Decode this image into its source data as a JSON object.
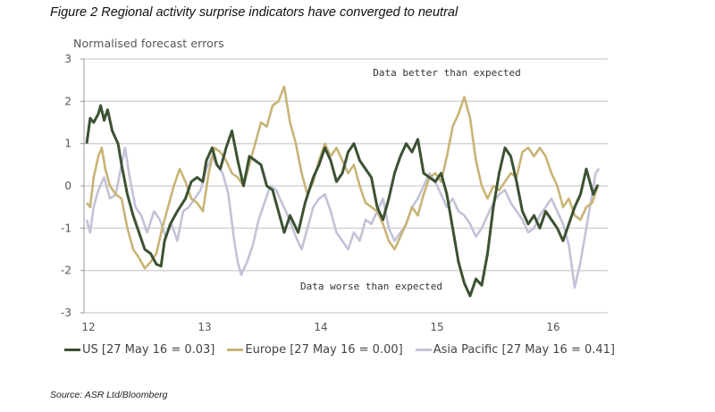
{
  "figure_title": "Figure 2 Regional activity surprise indicators have converged to neutral",
  "source": "Source: ASR Ltd/Bloomberg",
  "chart_data": {
    "type": "line",
    "title": "Figure 2 Regional activity surprise indicators have converged to neutral",
    "ylabel": "Normalised forecast errors",
    "xlabel": "",
    "ylim": [
      -3,
      3
    ],
    "xlim": [
      12,
      16.48
    ],
    "yticks": [
      3,
      2,
      1,
      0,
      -1,
      -2,
      -3
    ],
    "xticks": [
      12,
      13,
      14,
      15,
      16
    ],
    "xtick_labels": [
      "12",
      "13",
      "14",
      "15",
      "16"
    ],
    "grid": "horizontal",
    "legend_position": "bottom",
    "annotations": [
      {
        "text": "Data better than expected",
        "x": 15.1,
        "y": 2.6
      },
      {
        "text": "Data worse than expected",
        "x": 14.45,
        "y": -2.45
      }
    ],
    "series": [
      {
        "name": "US [27 May 16 = 0.03]",
        "color": "#3b5233",
        "x": [
          12.0,
          12.03,
          12.06,
          12.1,
          12.12,
          12.15,
          12.18,
          12.22,
          12.27,
          12.3,
          12.35,
          12.4,
          12.45,
          12.5,
          12.55,
          12.6,
          12.64,
          12.67,
          12.72,
          12.78,
          12.85,
          12.9,
          12.95,
          13.0,
          13.03,
          13.08,
          13.12,
          13.15,
          13.2,
          13.25,
          13.3,
          13.35,
          13.4,
          13.45,
          13.5,
          13.55,
          13.6,
          13.65,
          13.7,
          13.75,
          13.82,
          13.88,
          13.95,
          14.0,
          14.05,
          14.1,
          14.15,
          14.2,
          14.25,
          14.3,
          14.35,
          14.4,
          14.45,
          14.5,
          14.55,
          14.6,
          14.65,
          14.7,
          14.75,
          14.8,
          14.85,
          14.9,
          14.95,
          15.0,
          15.05,
          15.1,
          15.15,
          15.2,
          15.25,
          15.3,
          15.35,
          15.4,
          15.45,
          15.5,
          15.55,
          15.6,
          15.65,
          15.7,
          15.75,
          15.8,
          15.85,
          15.9,
          15.95,
          16.0,
          16.05,
          16.1,
          16.15,
          16.2,
          16.25,
          16.3,
          16.33,
          16.36,
          16.4
        ],
        "values": [
          1.0,
          1.6,
          1.5,
          1.7,
          1.9,
          1.55,
          1.8,
          1.3,
          1.0,
          0.5,
          -0.2,
          -0.7,
          -1.1,
          -1.5,
          -1.6,
          -1.85,
          -1.9,
          -1.3,
          -0.9,
          -0.6,
          -0.3,
          0.1,
          0.2,
          0.1,
          0.6,
          0.9,
          0.5,
          0.4,
          0.9,
          1.3,
          0.6,
          0.0,
          0.7,
          0.6,
          0.5,
          0.0,
          -0.1,
          -0.6,
          -1.1,
          -0.7,
          -1.1,
          -0.4,
          0.2,
          0.5,
          0.9,
          0.6,
          0.1,
          0.3,
          0.8,
          1.0,
          0.6,
          0.4,
          0.2,
          -0.5,
          -0.8,
          -0.3,
          0.3,
          0.7,
          1.0,
          0.8,
          1.1,
          0.3,
          0.2,
          0.1,
          0.3,
          -0.2,
          -1.0,
          -1.8,
          -2.3,
          -2.6,
          -2.2,
          -2.35,
          -1.6,
          -0.5,
          0.3,
          0.9,
          0.7,
          0.1,
          -0.6,
          -0.9,
          -0.7,
          -1.0,
          -0.6,
          -0.8,
          -1.0,
          -1.3,
          -0.9,
          -0.5,
          -0.2,
          0.4,
          0.1,
          -0.2,
          0.03
        ]
      },
      {
        "name": "Europe [27 May 16 = 0.00]",
        "color": "#c8b476",
        "x": [
          12.0,
          12.03,
          12.06,
          12.1,
          12.13,
          12.16,
          12.2,
          12.25,
          12.3,
          12.35,
          12.4,
          12.45,
          12.5,
          12.55,
          12.6,
          12.65,
          12.7,
          12.75,
          12.8,
          12.85,
          12.9,
          12.95,
          13.0,
          13.05,
          13.1,
          13.15,
          13.2,
          13.25,
          13.3,
          13.35,
          13.4,
          13.45,
          13.5,
          13.55,
          13.6,
          13.65,
          13.7,
          13.75,
          13.8,
          13.85,
          13.9,
          13.95,
          14.0,
          14.05,
          14.1,
          14.15,
          14.2,
          14.25,
          14.3,
          14.35,
          14.4,
          14.45,
          14.5,
          14.55,
          14.6,
          14.65,
          14.7,
          14.75,
          14.8,
          14.85,
          14.9,
          14.95,
          15.0,
          15.05,
          15.1,
          15.15,
          15.2,
          15.25,
          15.3,
          15.35,
          15.4,
          15.45,
          15.5,
          15.55,
          15.6,
          15.65,
          15.7,
          15.75,
          15.8,
          15.85,
          15.9,
          15.95,
          16.0,
          16.05,
          16.1,
          16.15,
          16.2,
          16.25,
          16.3,
          16.35,
          16.4
        ],
        "values": [
          -0.4,
          -0.5,
          0.2,
          0.7,
          0.9,
          0.4,
          0.0,
          -0.2,
          -0.3,
          -1.0,
          -1.5,
          -1.7,
          -1.95,
          -1.8,
          -1.6,
          -1.0,
          -0.5,
          0.0,
          0.4,
          0.1,
          -0.3,
          -0.4,
          -0.6,
          0.3,
          0.9,
          0.8,
          0.6,
          0.3,
          0.2,
          0.0,
          0.5,
          1.0,
          1.5,
          1.4,
          1.9,
          2.0,
          2.35,
          1.5,
          1.0,
          0.3,
          -0.2,
          0.1,
          0.6,
          1.0,
          0.7,
          0.9,
          0.6,
          0.3,
          0.5,
          0.0,
          -0.4,
          -0.5,
          -0.6,
          -0.9,
          -1.3,
          -1.5,
          -1.2,
          -0.9,
          -0.5,
          -0.7,
          -0.2,
          0.2,
          0.3,
          0.1,
          0.7,
          1.4,
          1.7,
          2.1,
          1.6,
          0.6,
          0.0,
          -0.3,
          0.0,
          -0.1,
          0.1,
          0.3,
          0.2,
          0.8,
          0.9,
          0.7,
          0.9,
          0.7,
          0.3,
          0.0,
          -0.5,
          -0.3,
          -0.7,
          -0.8,
          -0.5,
          -0.4,
          0.0
        ]
      },
      {
        "name": "Asia Pacific [27 May 16 = 0.41]",
        "color": "#c2c2d8",
        "x": [
          12.0,
          12.03,
          12.06,
          12.1,
          12.15,
          12.2,
          12.25,
          12.3,
          12.33,
          12.37,
          12.42,
          12.47,
          12.52,
          12.58,
          12.63,
          12.68,
          12.73,
          12.78,
          12.83,
          12.88,
          12.93,
          12.98,
          13.03,
          13.08,
          13.12,
          13.17,
          13.22,
          13.27,
          13.3,
          13.33,
          13.38,
          13.43,
          13.48,
          13.53,
          13.58,
          13.63,
          13.68,
          13.73,
          13.8,
          13.85,
          13.9,
          13.95,
          14.0,
          14.05,
          14.1,
          14.15,
          14.2,
          14.25,
          14.3,
          14.35,
          14.4,
          14.45,
          14.5,
          14.55,
          14.6,
          14.65,
          14.7,
          14.75,
          14.8,
          14.85,
          14.9,
          14.95,
          15.0,
          15.05,
          15.1,
          15.15,
          15.2,
          15.25,
          15.3,
          15.35,
          15.4,
          15.45,
          15.5,
          15.55,
          15.6,
          15.65,
          15.7,
          15.75,
          15.8,
          15.85,
          15.9,
          15.95,
          16.0,
          16.05,
          16.1,
          16.15,
          16.2,
          16.25,
          16.3,
          16.35,
          16.38,
          16.41
        ],
        "values": [
          -0.8,
          -1.1,
          -0.5,
          -0.1,
          0.2,
          -0.3,
          -0.2,
          0.5,
          0.9,
          0.2,
          -0.5,
          -0.7,
          -1.1,
          -0.6,
          -0.8,
          -1.2,
          -0.9,
          -1.3,
          -0.6,
          -0.5,
          -0.3,
          -0.1,
          0.4,
          0.7,
          0.5,
          0.3,
          -0.2,
          -1.3,
          -1.8,
          -2.1,
          -1.8,
          -1.4,
          -0.8,
          -0.4,
          0.0,
          -0.1,
          -0.4,
          -0.7,
          -1.2,
          -1.5,
          -1.0,
          -0.5,
          -0.3,
          -0.2,
          -0.6,
          -1.1,
          -1.3,
          -1.5,
          -1.1,
          -1.3,
          -0.8,
          -0.9,
          -0.6,
          -0.3,
          -1.0,
          -1.3,
          -1.1,
          -0.9,
          -0.5,
          -0.3,
          0.0,
          0.3,
          0.1,
          -0.2,
          -0.5,
          -0.3,
          -0.6,
          -0.7,
          -0.9,
          -1.2,
          -1.0,
          -0.7,
          -0.4,
          -0.2,
          -0.1,
          -0.4,
          -0.6,
          -0.8,
          -1.1,
          -1.0,
          -0.7,
          -0.5,
          -0.3,
          -0.6,
          -0.9,
          -1.4,
          -2.4,
          -1.8,
          -1.0,
          -0.2,
          0.3,
          0.41
        ]
      }
    ]
  }
}
